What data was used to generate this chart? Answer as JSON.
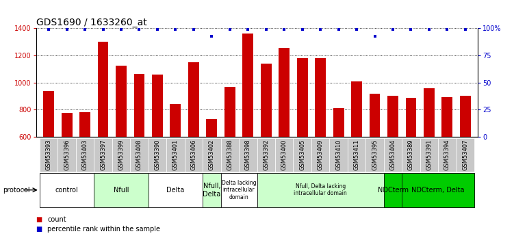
{
  "title": "GDS1690 / 1633260_at",
  "samples": [
    "GSM53393",
    "GSM53396",
    "GSM53403",
    "GSM53397",
    "GSM53399",
    "GSM53408",
    "GSM53390",
    "GSM53401",
    "GSM53406",
    "GSM53402",
    "GSM53388",
    "GSM53398",
    "GSM53392",
    "GSM53400",
    "GSM53405",
    "GSM53409",
    "GSM53410",
    "GSM53411",
    "GSM53395",
    "GSM53404",
    "GSM53389",
    "GSM53391",
    "GSM53394",
    "GSM53407"
  ],
  "counts": [
    940,
    775,
    780,
    1300,
    1125,
    1065,
    1060,
    840,
    1150,
    730,
    970,
    1360,
    1140,
    1255,
    1180,
    1180,
    810,
    1010,
    920,
    905,
    890,
    960,
    895,
    905
  ],
  "percentiles": [
    99,
    99,
    99,
    99,
    99,
    99,
    99,
    99,
    99,
    93,
    99,
    99,
    99,
    99,
    99,
    99,
    99,
    99,
    93,
    99,
    99,
    99,
    99,
    99
  ],
  "bar_color": "#cc0000",
  "dot_color": "#0000cc",
  "ylim": [
    600,
    1400
  ],
  "yticks": [
    600,
    800,
    1000,
    1200,
    1400
  ],
  "y2ticks": [
    0,
    25,
    50,
    75,
    100
  ],
  "y2tick_labels": [
    "0",
    "25",
    "50",
    "75",
    "100%"
  ],
  "groups": [
    {
      "label": "control",
      "start": 0,
      "end": 3,
      "color": "#ffffff"
    },
    {
      "label": "Nfull",
      "start": 3,
      "end": 6,
      "color": "#ccffcc"
    },
    {
      "label": "Delta",
      "start": 6,
      "end": 9,
      "color": "#ffffff"
    },
    {
      "label": "Nfull,\nDelta",
      "start": 9,
      "end": 10,
      "color": "#ccffcc"
    },
    {
      "label": "Delta lacking\nintracellular\ndomain",
      "start": 10,
      "end": 12,
      "color": "#ffffff"
    },
    {
      "label": "Nfull, Delta lacking\nintracellular domain",
      "start": 12,
      "end": 19,
      "color": "#ccffcc"
    },
    {
      "label": "NDCterm",
      "start": 19,
      "end": 20,
      "color": "#00cc00"
    },
    {
      "label": "NDCterm, Delta",
      "start": 20,
      "end": 24,
      "color": "#00cc00"
    }
  ],
  "protocol_label": "protocol",
  "legend_count_label": "count",
  "legend_pct_label": "percentile rank within the sample",
  "sample_bg_color": "#c8c8c8",
  "plot_bg_color": "#ffffff",
  "title_fontsize": 10,
  "tick_fontsize": 6,
  "group_fontsize": 7
}
